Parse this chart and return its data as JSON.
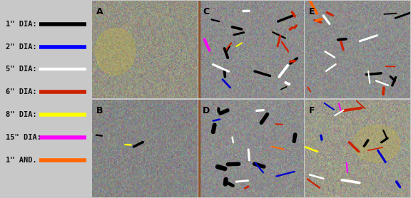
{
  "legend_box": {
    "bg_color": "#3dcc9e",
    "entries": [
      {
        "label": "1\" DIA:",
        "color": "#000000"
      },
      {
        "label": "2\" DIA:",
        "color": "#0000ff"
      },
      {
        "label": "5\" DIA:",
        "color": "#ffffff"
      },
      {
        "label": "6\" DIA:",
        "color": "#cc2200"
      },
      {
        "label": "8\" DIA:",
        "color": "#ffff00"
      },
      {
        "label": "15\" DIA:",
        "color": "#ff00ff"
      },
      {
        "label": "1\" AND.",
        "color": "#ff6600"
      }
    ]
  },
  "figsize": [
    5.76,
    2.78
  ],
  "dpi": 100
}
